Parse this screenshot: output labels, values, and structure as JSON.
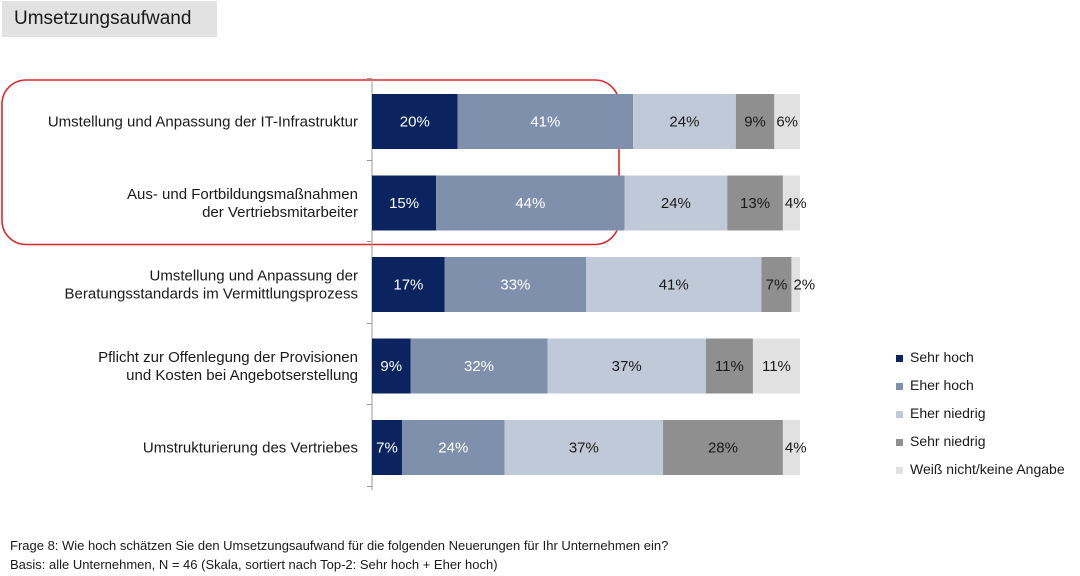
{
  "page": {
    "title": "Umsetzungsaufwand",
    "footer_question": "Frage 8: Wie hoch schätzen Sie den Umsetzungsaufwand für die folgenden Neuerungen für Ihr Unternehmen ein?",
    "footer_basis": "Basis: alle Unternehmen, N = 46 (Skala, sortiert nach Top-2: Sehr hoch + Eher hoch)"
  },
  "chart_data": {
    "type": "bar",
    "orientation": "horizontal",
    "stacked": true,
    "title": "Umsetzungsaufwand",
    "categories": [
      [
        "Umstellung und Anpassung der IT-Infrastruktur"
      ],
      [
        "Aus- und Fortbildungsmaßnahmen",
        "der Vertriebsmitarbeiter"
      ],
      [
        "Umstellung und Anpassung der",
        "Beratungsstandards im Vermittlungsprozess"
      ],
      [
        "Pflicht zur Offenlegung der Provisionen",
        "und Kosten bei Angebotserstellung"
      ],
      [
        "Umstrukturierung des Vertriebes"
      ]
    ],
    "unit": "%",
    "xlim": [
      0,
      100
    ],
    "legend_position": "right",
    "grid": false,
    "highlighted_categories": [
      0,
      1
    ],
    "highlight_color": "#e0262b",
    "series": [
      {
        "name": "Sehr hoch",
        "color": "#0b2460",
        "label_color": "#ffffff",
        "values": [
          20,
          15,
          17,
          9,
          7
        ]
      },
      {
        "name": "Eher hoch",
        "color": "#7f90ad",
        "label_color": "#ffffff",
        "values": [
          41,
          44,
          33,
          32,
          24
        ]
      },
      {
        "name": "Eher niedrig",
        "color": "#c0c9d8",
        "label_color": "#1a1a1a",
        "values": [
          24,
          24,
          41,
          37,
          37
        ]
      },
      {
        "name": "Sehr niedrig",
        "color": "#8f8f8f",
        "label_color": "#1a1a1a",
        "values": [
          9,
          13,
          7,
          11,
          28
        ]
      },
      {
        "name": "Weiß nicht/keine Angabe",
        "color": "#e1e1e1",
        "label_color": "#1a1a1a",
        "values": [
          6,
          4,
          2,
          11,
          4
        ]
      }
    ]
  }
}
